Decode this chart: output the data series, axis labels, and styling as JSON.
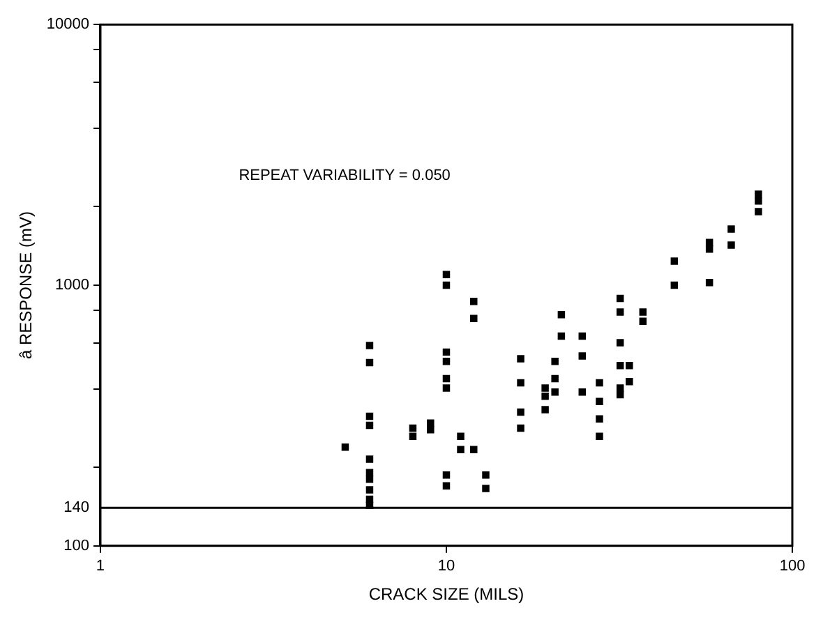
{
  "chart_data": {
    "type": "scatter",
    "xlabel": "CRACK SIZE (MILS)",
    "ylabel": "â RESPONSE (mV)",
    "log": "xy",
    "xlim": [
      1,
      100
    ],
    "xticks": [
      1,
      10,
      100
    ],
    "ylim": [
      100,
      10000
    ],
    "yticks": [
      100,
      {
        "value": 200,
        "label": null
      },
      {
        "value": 400,
        "label": null
      },
      {
        "value": 600,
        "label": null
      },
      {
        "value": 800,
        "label": null
      },
      1000,
      {
        "value": 2000,
        "label": null
      },
      {
        "value": 4000,
        "label": null
      },
      {
        "value": 6000,
        "label": null
      },
      {
        "value": 8000,
        "label": null
      },
      10000
    ],
    "grid": false,
    "legend": false,
    "marker": "square",
    "series": [
      {
        "color": "#000000",
        "x": [
          5.1,
          6,
          6,
          6,
          6,
          6,
          6,
          6,
          6,
          6,
          6,
          8,
          8,
          9,
          9,
          10,
          10,
          10,
          10,
          10,
          10,
          10,
          10,
          11,
          11,
          12,
          12,
          12,
          13,
          13,
          16.4,
          16.4,
          16.4,
          16.4,
          19.3,
          19.3,
          19.3,
          20.6,
          20.6,
          20.6,
          21.5,
          21.5,
          24.7,
          24.7,
          24.7,
          27.7,
          27.7,
          27.7,
          27.7,
          31.8,
          31.8,
          31.8,
          31.8,
          31.8,
          31.8,
          33.8,
          33.8,
          37,
          37,
          45.6,
          45.6,
          57.6,
          57.6,
          57.6,
          66.6,
          66.6,
          79.8,
          79.8,
          79.8
        ],
        "values": [
          239,
          587,
          505,
          314,
          290,
          215,
          191,
          180,
          164,
          151,
          143,
          283,
          263,
          296,
          279,
          1099,
          1000,
          554,
          510,
          438,
          403,
          187,
          170,
          263,
          234,
          867,
          745,
          234,
          187,
          166,
          522,
          422,
          326,
          283,
          403,
          375,
          333,
          510,
          438,
          389,
          771,
          638,
          638,
          535,
          389,
          422,
          358,
          307,
          263,
          889,
          789,
          602,
          492,
          403,
          380,
          492,
          427,
          789,
          727,
          1237,
          1000,
          1459,
          1375,
          1023,
          1642,
          1425,
          2233,
          2104,
          1915
        ]
      }
    ],
    "ref_lines": [
      {
        "axis": "y",
        "value": 140,
        "label": "140"
      }
    ],
    "annotations": [
      "REPEAT VARIABILITY = 0.050"
    ]
  }
}
